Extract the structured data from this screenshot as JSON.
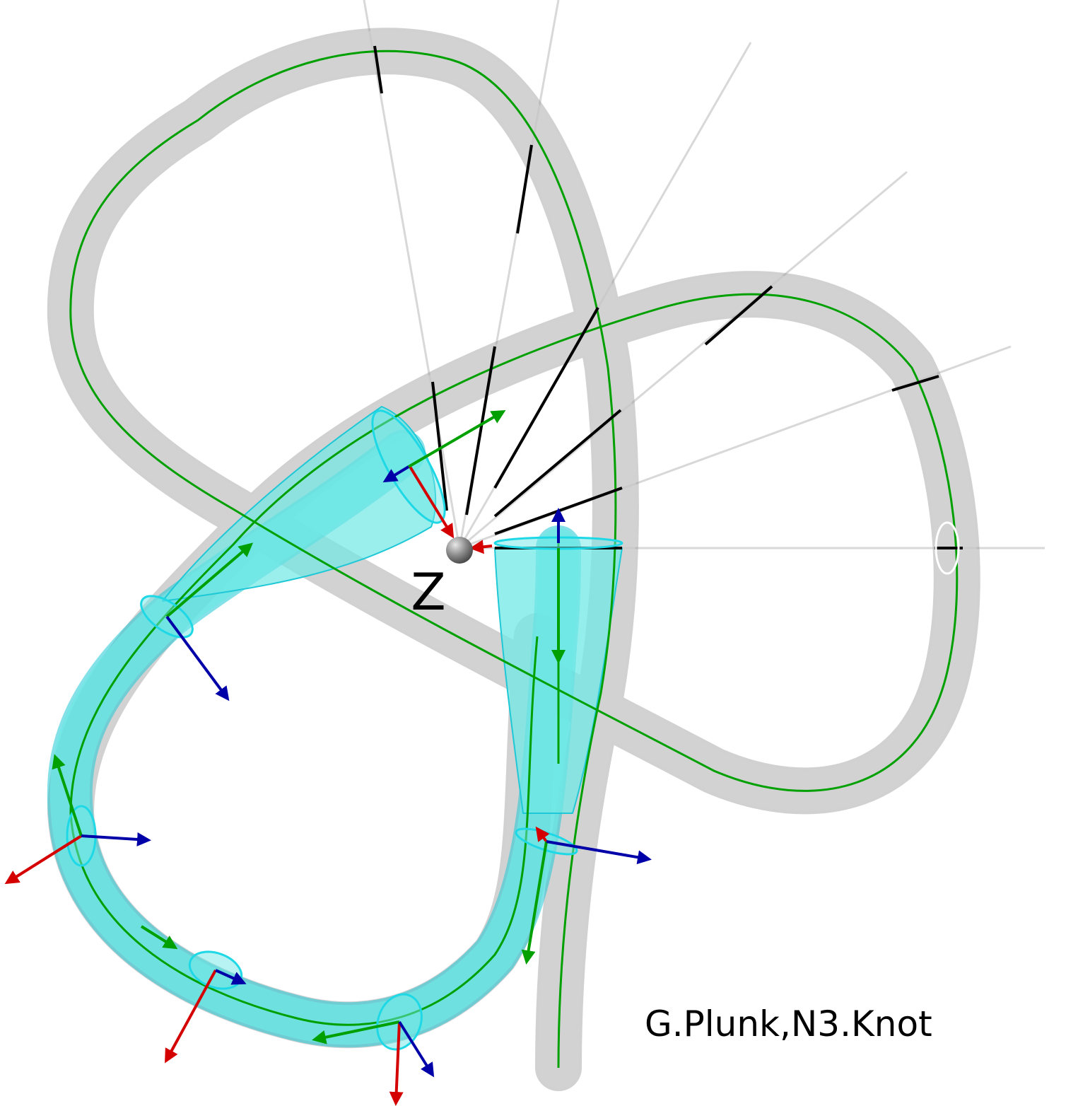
{
  "axis_label": "Z",
  "credit": "G.Plunk,N3.Knot",
  "colors": {
    "background": "#ffffff",
    "tube": "#c9c9c9",
    "tube_edge": "#9a9a9a",
    "highlight_tube": "#5fe0df",
    "highlight_edge": "#1fc8d6",
    "axis_line": "#00a000",
    "x_axis": "#d40000",
    "y_axis": "#00a000",
    "z_axis": "#0000a8",
    "marker": "#000000",
    "ray": "#d8d8d8",
    "origin": "#7a7a7a"
  },
  "icons": {
    "origin": "sphere-icon",
    "frames": "arrow-icon",
    "sections": "ellipse-icon"
  }
}
